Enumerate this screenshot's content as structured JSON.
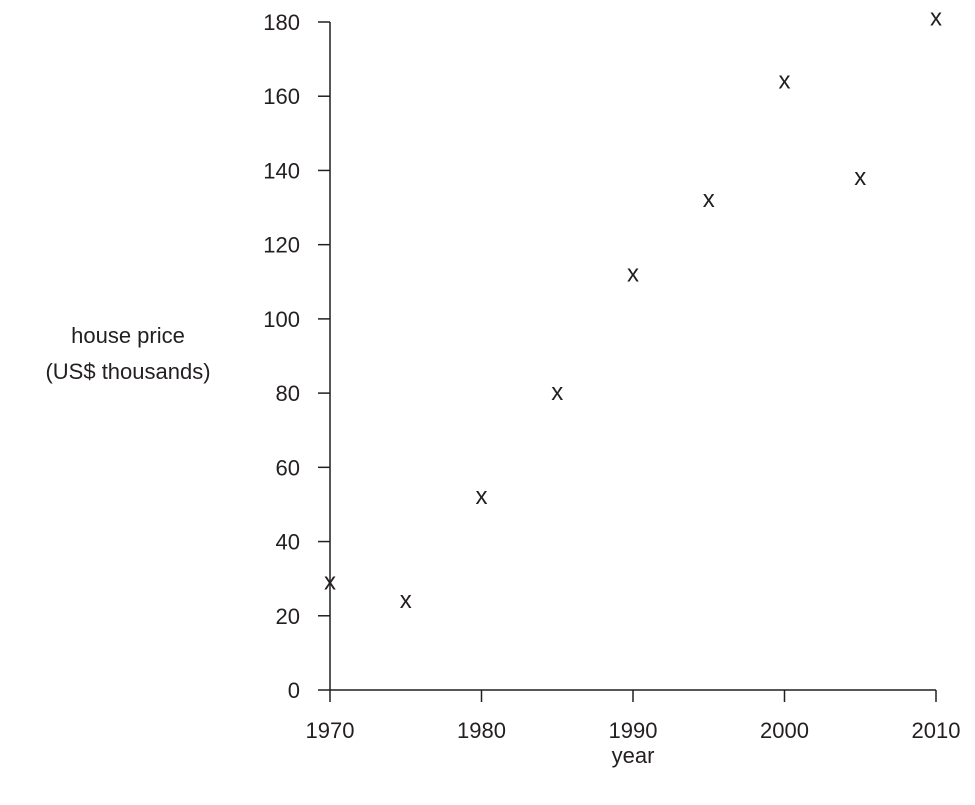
{
  "chart_data": {
    "type": "scatter",
    "title": "",
    "xlabel": "year",
    "ylabel_lines": [
      "house price",
      "(US$ thousands)"
    ],
    "marker_symbol": "x",
    "x": [
      1970,
      1975,
      1980,
      1985,
      1990,
      1995,
      2000,
      2005,
      2010
    ],
    "y": [
      29,
      24,
      52,
      80,
      112,
      132,
      164,
      138,
      181
    ],
    "xlim": [
      1970,
      2010
    ],
    "ylim": [
      0,
      180
    ],
    "xticks": [
      1970,
      1980,
      1990,
      2000,
      2010
    ],
    "yticks": [
      0,
      20,
      40,
      60,
      80,
      100,
      120,
      140,
      160,
      180
    ],
    "grid": false,
    "legend": "none",
    "colors": {
      "ink": "#231f20",
      "background": "#ffffff"
    }
  }
}
